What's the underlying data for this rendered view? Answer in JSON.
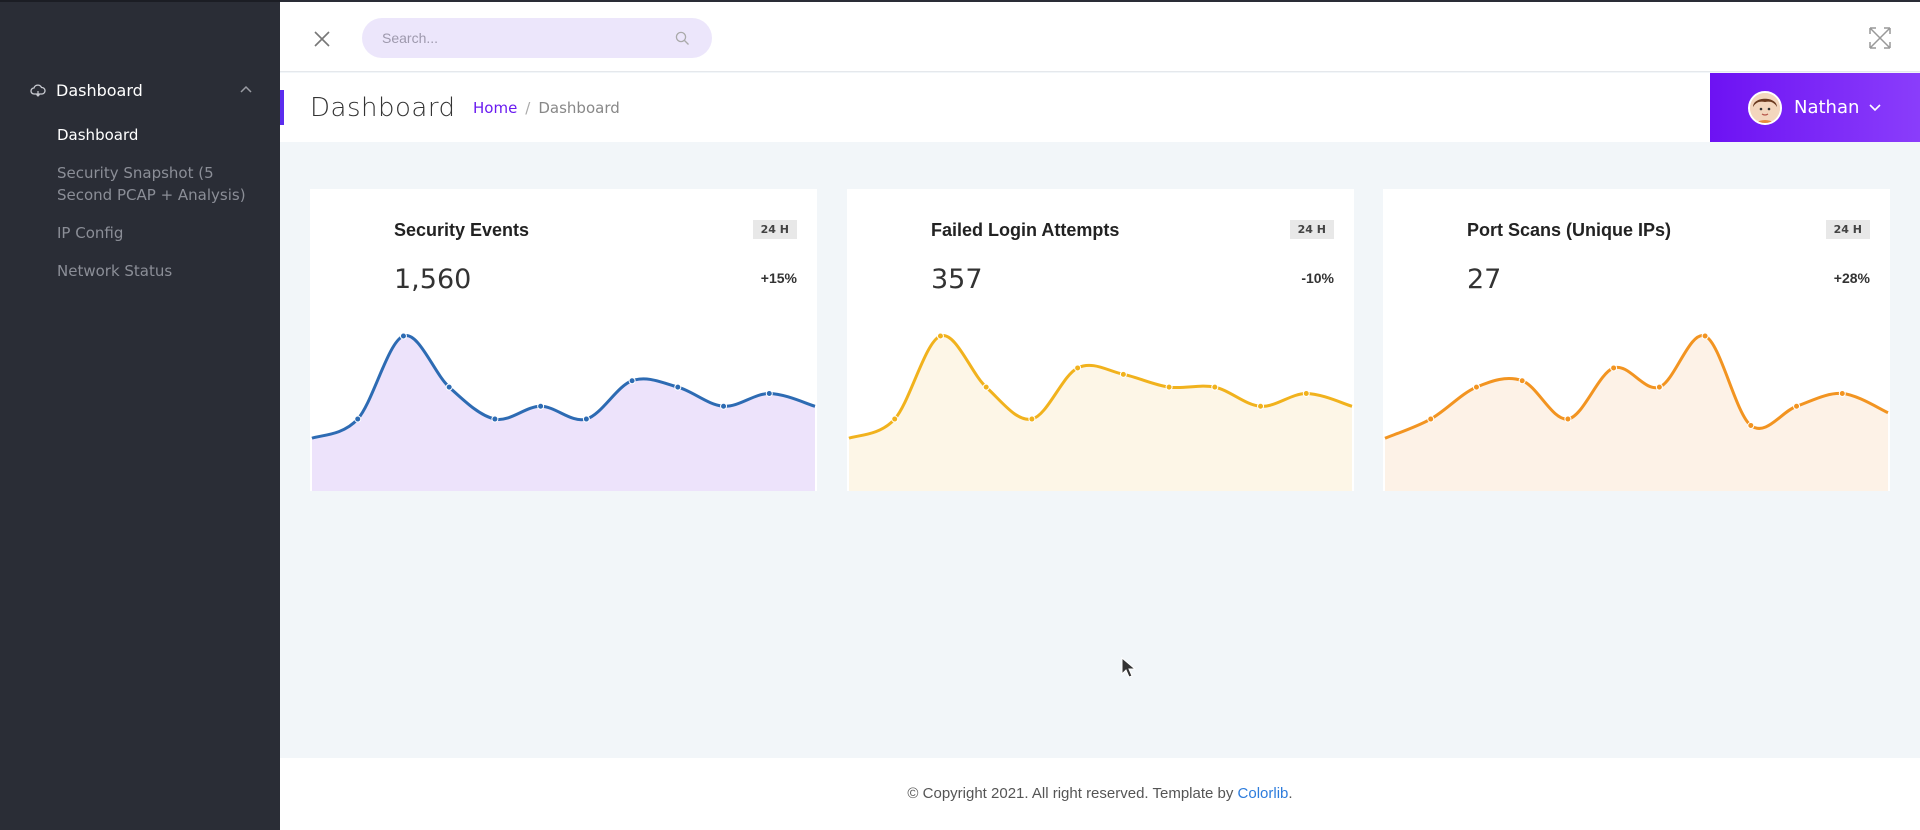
{
  "sidebar": {
    "section_label": "Dashboard",
    "items": [
      {
        "label": "Dashboard",
        "active": true
      },
      {
        "label": "Security Snapshot (5 Second PCAP + Analysis)",
        "active": false
      },
      {
        "label": "IP Config",
        "active": false
      },
      {
        "label": "Network Status",
        "active": false
      }
    ]
  },
  "topbar": {
    "search_placeholder": "Search..."
  },
  "header": {
    "title": "Dashboard",
    "breadcrumb": {
      "home": "Home",
      "sep": "/",
      "current": "Dashboard"
    },
    "user_name": "Nathan"
  },
  "cards": [
    {
      "title": "Security Events",
      "badge": "24 H",
      "value": "1,560",
      "change": "+15%",
      "line_color": "#2d6bb3",
      "fill_color": "#ede3fb"
    },
    {
      "title": "Failed Login Attempts",
      "badge": "24 H",
      "value": "357",
      "change": "-10%",
      "line_color": "#f1b21d",
      "fill_color": "#fdf6e7"
    },
    {
      "title": "Port Scans (Unique IPs)",
      "badge": "24 H",
      "value": "27",
      "change": "+28%",
      "line_color": "#f29421",
      "fill_color": "#fdf2e7"
    }
  ],
  "chart_data": [
    {
      "type": "area",
      "x": [
        0,
        1,
        2,
        3,
        4,
        5,
        6,
        7,
        8,
        9,
        10,
        11
      ],
      "values": [
        2,
        5,
        18,
        10,
        5,
        7,
        5,
        11,
        10,
        7,
        9,
        7
      ]
    },
    {
      "type": "area",
      "x": [
        0,
        1,
        2,
        3,
        4,
        5,
        6,
        7,
        8,
        9,
        10,
        11
      ],
      "values": [
        2,
        5,
        18,
        10,
        5,
        13,
        12,
        10,
        10,
        7,
        9,
        7
      ]
    },
    {
      "type": "area",
      "x": [
        0,
        1,
        2,
        3,
        4,
        5,
        6,
        7,
        8,
        9,
        10,
        11
      ],
      "values": [
        2,
        5,
        10,
        11,
        5,
        13,
        10,
        18,
        4,
        7,
        9,
        6
      ]
    }
  ],
  "footer": {
    "text": "© Copyright 2021. All right reserved. Template by ",
    "link": "Colorlib",
    "end": "."
  }
}
